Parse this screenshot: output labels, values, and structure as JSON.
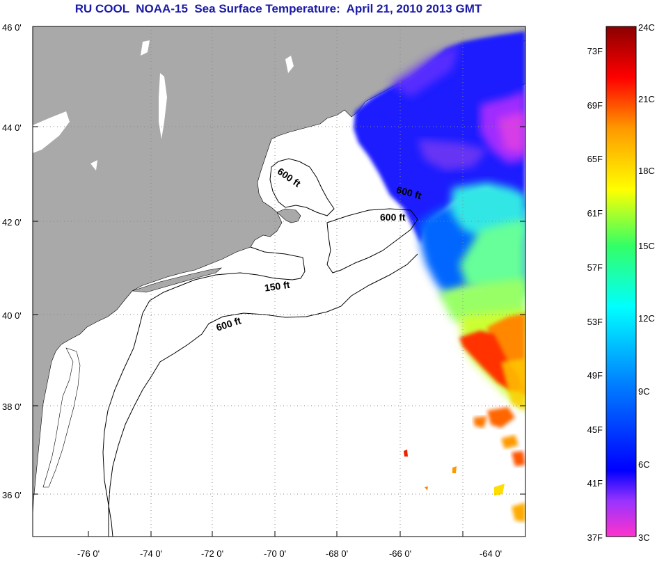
{
  "title": "RU COOL  NOAA-15  Sea Surface Temperature:  April 21, 2010 2013 GMT",
  "lat_ticks": [
    "46 0'",
    "44 0'",
    "42 0'",
    "40 0'",
    "38 0'",
    "36 0'"
  ],
  "lon_ticks": [
    "-76 0'",
    "-74 0'",
    "-72 0'",
    "-70 0'",
    "-68 0'",
    "-66 0'",
    "-64 0'"
  ],
  "contours": {
    "c600_gulf": "600 ft",
    "c600_ne": "600 ft",
    "c600_georges": "600 ft",
    "c150": "150 ft",
    "c600_shelf": "600 ft"
  },
  "colorbar": {
    "f_labels": [
      "73F",
      "69F",
      "65F",
      "61F",
      "57F",
      "53F",
      "49F",
      "45F",
      "41F",
      "37F"
    ],
    "c_labels": [
      "24C",
      "21C",
      "18C",
      "15C",
      "12C",
      "9C",
      "6C",
      "3C"
    ]
  },
  "colors": {
    "land": "#a9a9a9",
    "ocean": "#ffffff",
    "title": "#1a1aa6"
  }
}
